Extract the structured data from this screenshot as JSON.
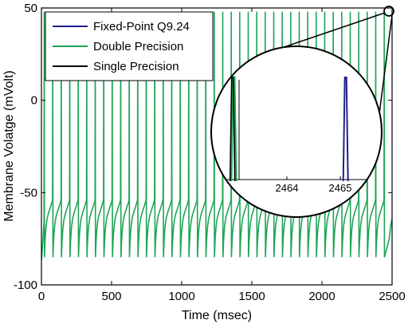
{
  "chart_data": {
    "type": "line",
    "xlabel": "Time (msec)",
    "ylabel": "Membrane Volatge (mVolt)",
    "xlim": [
      0,
      2500
    ],
    "ylim": [
      -100,
      50
    ],
    "xticks": [
      "0",
      "500",
      "1000",
      "1500",
      "2000",
      "2500"
    ],
    "yticks": [
      "50",
      "0",
      "-50",
      "-100"
    ],
    "legend_position": "top-left",
    "series": [
      {
        "name": "Fixed-Point Q9.24",
        "color": "#1f1f8c"
      },
      {
        "name": "Double Precision",
        "color": "#1fa556"
      },
      {
        "name": "Single Precision",
        "color": "#000000"
      }
    ],
    "spike": {
      "first_spike_ms": 20,
      "interval_ms": 60.6,
      "last_spike_ms": 2465,
      "peak_mV": 48,
      "trough_mV": -85,
      "afterpotential_mV": -62
    },
    "inset": {
      "zoom_center": [
        2460,
        48
      ],
      "tick_labels": [
        "2464",
        "2465"
      ],
      "spike_positions_ms": [
        2463.0,
        2465.1
      ]
    }
  }
}
